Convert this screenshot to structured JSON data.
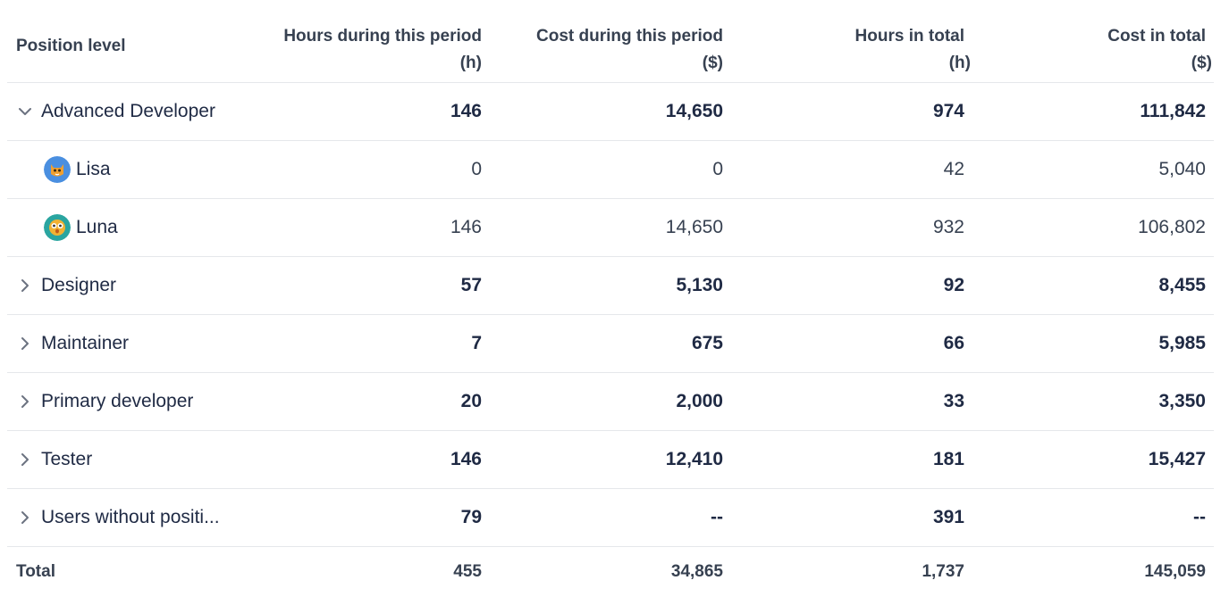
{
  "header": {
    "position_level": "Position level",
    "hours_period": "Hours during this period",
    "hours_period_unit": "(h)",
    "cost_period": "Cost during this period",
    "cost_period_unit": "($)",
    "hours_total": "Hours in total",
    "hours_total_unit": "(h)",
    "cost_total": "Cost in total",
    "cost_total_unit": "($)"
  },
  "groups": [
    {
      "name": "Advanced Developer",
      "expanded": true,
      "hours_period": "146",
      "cost_period": "14,650",
      "hours_total": "974",
      "cost_total": "111,842",
      "members": [
        {
          "name": "Lisa",
          "avatar_icon": "cat-avatar-icon",
          "avatar_color": "#4a8fe0",
          "hours_period": "0",
          "cost_period": "0",
          "hours_total": "42",
          "cost_total": "5,040"
        },
        {
          "name": "Luna",
          "avatar_icon": "owl-avatar-icon",
          "avatar_color": "#2aa5a0",
          "hours_period": "146",
          "cost_period": "14,650",
          "hours_total": "932",
          "cost_total": "106,802"
        }
      ]
    },
    {
      "name": "Designer",
      "expanded": false,
      "hours_period": "57",
      "cost_period": "5,130",
      "hours_total": "92",
      "cost_total": "8,455"
    },
    {
      "name": "Maintainer",
      "expanded": false,
      "hours_period": "7",
      "cost_period": "675",
      "hours_total": "66",
      "cost_total": "5,985"
    },
    {
      "name": "Primary developer",
      "expanded": false,
      "hours_period": "20",
      "cost_period": "2,000",
      "hours_total": "33",
      "cost_total": "3,350"
    },
    {
      "name": "Tester",
      "expanded": false,
      "hours_period": "146",
      "cost_period": "12,410",
      "hours_total": "181",
      "cost_total": "15,427"
    },
    {
      "name": "Users without positi...",
      "expanded": false,
      "hours_period": "79",
      "cost_period": "--",
      "hours_total": "391",
      "cost_total": "--"
    }
  ],
  "total": {
    "label": "Total",
    "hours_period": "455",
    "cost_period": "34,865",
    "hours_total": "1,737",
    "cost_total": "145,059"
  }
}
